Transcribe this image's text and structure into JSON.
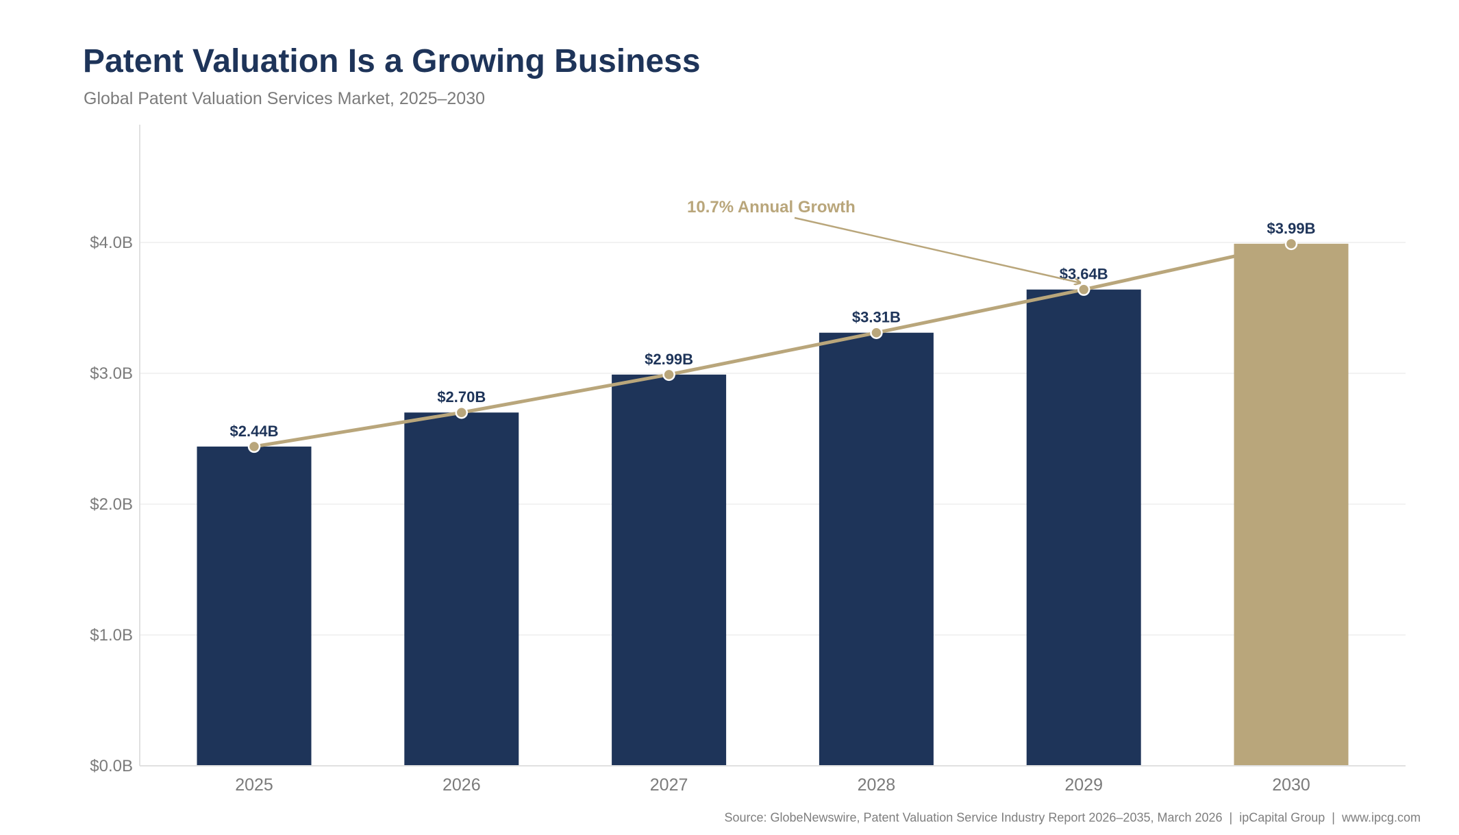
{
  "header": {
    "title": "Patent Valuation Is a Growing Business",
    "subtitle": "Global Patent Valuation Services Market, 2025–2030"
  },
  "footer": {
    "source": "Source: GlobeNewswire, Patent Valuation Service Industry Report 2026–2035, March 2026  |  ipCapital Group  |  www.ipcg.com"
  },
  "colors": {
    "bar_primary": "#1e3459",
    "bar_highlight": "#b9a67b",
    "trend_line": "#b9a67b",
    "label_text": "#1e3459",
    "axis_text": "#7b7b7b",
    "grid": "#eeeeee",
    "axis_line": "#e0e0e0"
  },
  "chart_data": {
    "type": "bar",
    "title": "Patent Valuation Is a Growing Business",
    "subtitle": "Global Patent Valuation Services Market, 2025–2030",
    "xlabel": "",
    "ylabel": "",
    "categories": [
      "2025",
      "2026",
      "2027",
      "2028",
      "2029",
      "2030"
    ],
    "values": [
      2.44,
      2.7,
      2.99,
      3.31,
      3.64,
      3.99
    ],
    "value_labels": [
      "$2.44B",
      "$2.70B",
      "$2.99B",
      "$3.31B",
      "$3.64B",
      "$3.99B"
    ],
    "units": "USD billions",
    "highlight_category": "2030",
    "ylim": [
      0,
      4.9
    ],
    "yticks": [
      0,
      1,
      2,
      3,
      4
    ],
    "ytick_labels": [
      "$0.0B",
      "$1.0B",
      "$2.0B",
      "$3.0B",
      "$4.0B"
    ],
    "grid": true,
    "overlay_line": {
      "type": "line",
      "name": "Trend",
      "values": [
        2.44,
        2.7,
        2.99,
        3.31,
        3.64,
        3.99
      ],
      "markers": true
    },
    "annotations": [
      {
        "text": "10.7% Annual Growth",
        "arrow_to_category": "2029",
        "arrow_to_value": 3.64
      }
    ]
  }
}
